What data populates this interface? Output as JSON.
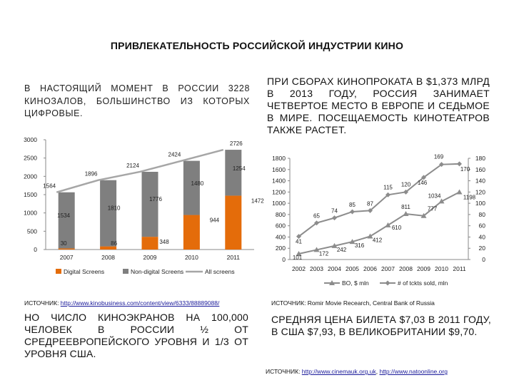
{
  "slide": {
    "title": "ПРИВЛЕКАТЕЛЬНОСТЬ РОССИЙСКОЙ ИНДУСТРИИ КИНО",
    "left_text": "В НАСТОЯЩИЙ МОМЕНТ В РОССИИ 3228 КИНОЗАЛОВ, БОЛЬШИНСТВО ИЗ КОТОРЫХ ЦИФРОВЫЕ.",
    "right_text": "ПРИ СБОРАХ КИНОПРОКАТА В $1,373 МЛРД В 2013 ГОДУ, РОССИЯ ЗАНИМАЕТ ЧЕТВЕРТОЕ МЕСТО В ЕВРОПЕ И СЕДЬМОЕ В МИРЕ. ПОСЕЩАЕМОСТЬ КИНОТЕАТРОВ ТАКЖЕ РАСТЕТ.",
    "source_left_label": "ИСТОЧНИК: ",
    "source_left_link": "http://www.kinobusiness.com/content/view/6333/88889088/",
    "source_right": "ИСТОЧНИК: Romir Movie Recearch, Central Bank of Russia",
    "bottom_left_text": "НО ЧИСЛО КИНОЭКРАНОВ НА 100,000 ЧЕЛОВЕК В РОССИИ ½ ОТ СРЕДРЕЕВРОПЕЙСКОГО УРОВНЯ И 1/3 ОТ УРОВНЯ США.",
    "bottom_right_text": "СРЕДНЯЯ ЦЕНА БИЛЕТА $7,03 В 2011 ГОДУ, В США $7,93, В ВЕЛИКОБРИТАНИИ $9,70.",
    "source_bottom_label": "ИСТОЧНИК: ",
    "source_bottom_link1": "http://www.cinemauk.org.uk",
    "source_bottom_sep": ", ",
    "source_bottom_link2": "http://www.natoonline.org"
  },
  "colors": {
    "digital": "#e46c0a",
    "non_digital": "#7f7f7f",
    "all_screens_line": "#a6a6a6",
    "bo_line": "#8c8c8c",
    "tickets_line": "#8c8c8c",
    "axis": "#888888"
  },
  "chart_data": [
    {
      "type": "bar",
      "stacked": true,
      "categories": [
        "2007",
        "2008",
        "2009",
        "2010",
        "2011"
      ],
      "ylim": [
        0,
        3000
      ],
      "yticks": [
        "0",
        "500",
        "1000",
        "1500",
        "2000",
        "2500",
        "3000"
      ],
      "series": [
        {
          "name": "Digital Screens",
          "kind": "bar",
          "values": [
            30,
            86,
            348,
            944,
            1472
          ]
        },
        {
          "name": "Non-digital Screens",
          "kind": "bar",
          "values": [
            1534,
            1810,
            1776,
            1480,
            1254
          ]
        },
        {
          "name": "All screens",
          "kind": "line",
          "values": [
            1564,
            1896,
            2124,
            2424,
            2726
          ]
        }
      ],
      "legend_position": "bottom",
      "grid": false
    },
    {
      "type": "line",
      "categories": [
        "2002",
        "2003",
        "2004",
        "2005",
        "2006",
        "2007",
        "2008",
        "2009",
        "2010",
        "2011"
      ],
      "ylim_left": [
        0,
        1800
      ],
      "ylim_right": [
        0,
        180
      ],
      "yticks_left": [
        "0",
        "200",
        "400",
        "600",
        "800",
        "1000",
        "1200",
        "1400",
        "1600",
        "1800"
      ],
      "yticks_right": [
        "0",
        "20",
        "40",
        "60",
        "80",
        "100",
        "120",
        "140",
        "160",
        "180"
      ],
      "series": [
        {
          "name": "BO, $ mln",
          "axis": "left",
          "marker": "triangle",
          "values": [
            101,
            172,
            242,
            316,
            412,
            610,
            811,
            777,
            1034,
            1198
          ]
        },
        {
          "name": "# of tckts sold, mln",
          "axis": "right",
          "marker": "diamond",
          "values": [
            41,
            65,
            74,
            85,
            87,
            115,
            120,
            146,
            169,
            170
          ]
        }
      ],
      "legend_position": "bottom",
      "grid": false
    }
  ]
}
